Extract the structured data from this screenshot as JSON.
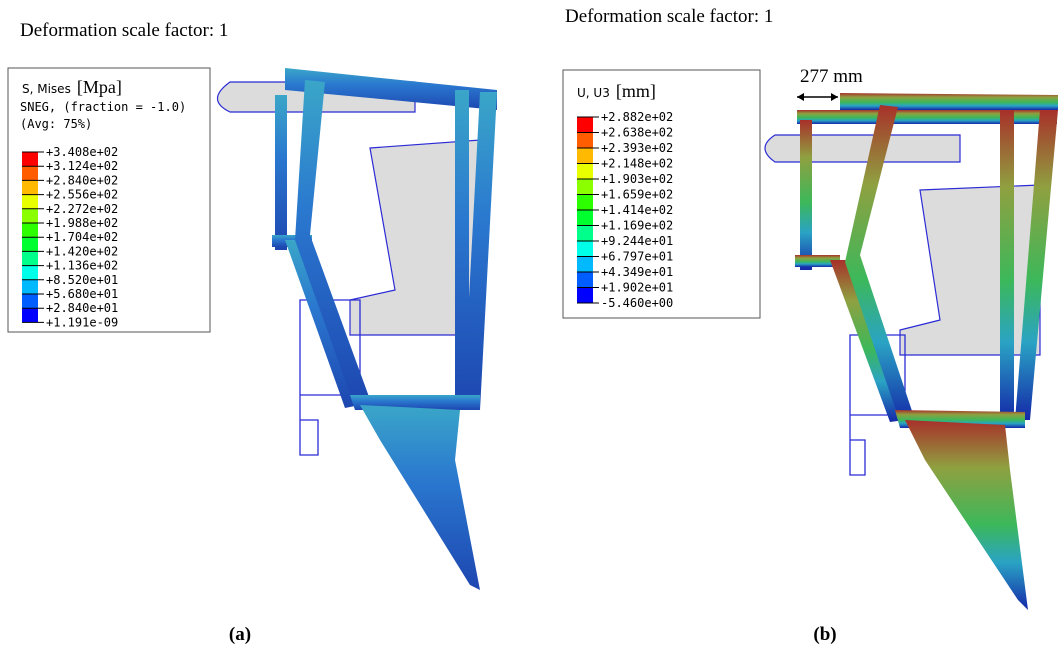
{
  "panels": [
    {
      "caption": "(a)",
      "scale_text": "Deformation scale factor: 1",
      "legend": {
        "title": "S, Mises",
        "unit": "[Mpa]",
        "lines": [
          "SNEG, (fraction = -1.0)",
          "(Avg: 75%)"
        ],
        "entries": [
          "+3.408e+02",
          "+3.124e+02",
          "+2.840e+02",
          "+2.556e+02",
          "+2.272e+02",
          "+1.988e+02",
          "+1.704e+02",
          "+1.420e+02",
          "+1.136e+02",
          "+8.520e+01",
          "+5.680e+01",
          "+2.840e+01",
          "+1.191e-09"
        ]
      }
    },
    {
      "caption": "(b)",
      "scale_text": "Deformation scale factor: 1",
      "annotation": "277 mm",
      "legend": {
        "title": "U, U3",
        "unit": "[mm]",
        "lines": [],
        "entries": [
          "+2.882e+02",
          "+2.638e+02",
          "+2.393e+02",
          "+2.148e+02",
          "+1.903e+02",
          "+1.659e+02",
          "+1.414e+02",
          "+1.169e+02",
          "+9.244e+01",
          "+6.797e+01",
          "+4.349e+01",
          "+1.902e+01",
          "-5.460e+00"
        ]
      }
    }
  ]
}
